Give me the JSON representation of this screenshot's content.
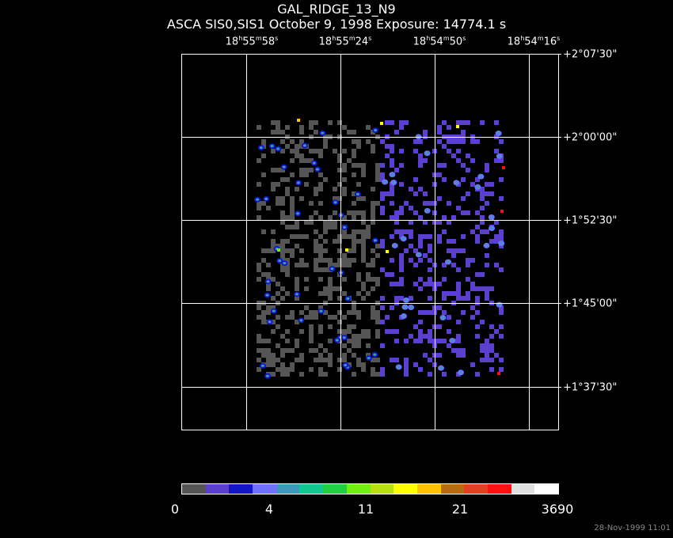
{
  "header": {
    "title": "GAL_RIDGE_13_N9",
    "subtitle": "ASCA SIS0,SIS1 October 9, 1998 Exposure: 14774.1 s"
  },
  "ra_labels": [
    {
      "h": "18",
      "m": "55",
      "s": "58"
    },
    {
      "h": "18",
      "m": "55",
      "s": "24"
    },
    {
      "h": "18",
      "m": "54",
      "s": "50"
    },
    {
      "h": "18",
      "m": "54",
      "s": "16"
    }
  ],
  "dec_labels": [
    "+2°07'30\"",
    "+2°00'00\"",
    "+1°52'30\"",
    "+1°45'00\"",
    "+1°37'30\""
  ],
  "colorbar": {
    "colors": [
      "#555555",
      "#5a3fd0",
      "#1414c8",
      "#7070ff",
      "#3a9ab8",
      "#10c890",
      "#20d040",
      "#70f010",
      "#b8e010",
      "#ffff00",
      "#ffc000",
      "#b86a10",
      "#e04020",
      "#ff1010",
      "#e0e0e0",
      "#ffffff"
    ],
    "labels": [
      "0",
      "4",
      "11",
      "21",
      "3690"
    ]
  },
  "timestamp": "28-Nov-1999 11:01"
}
